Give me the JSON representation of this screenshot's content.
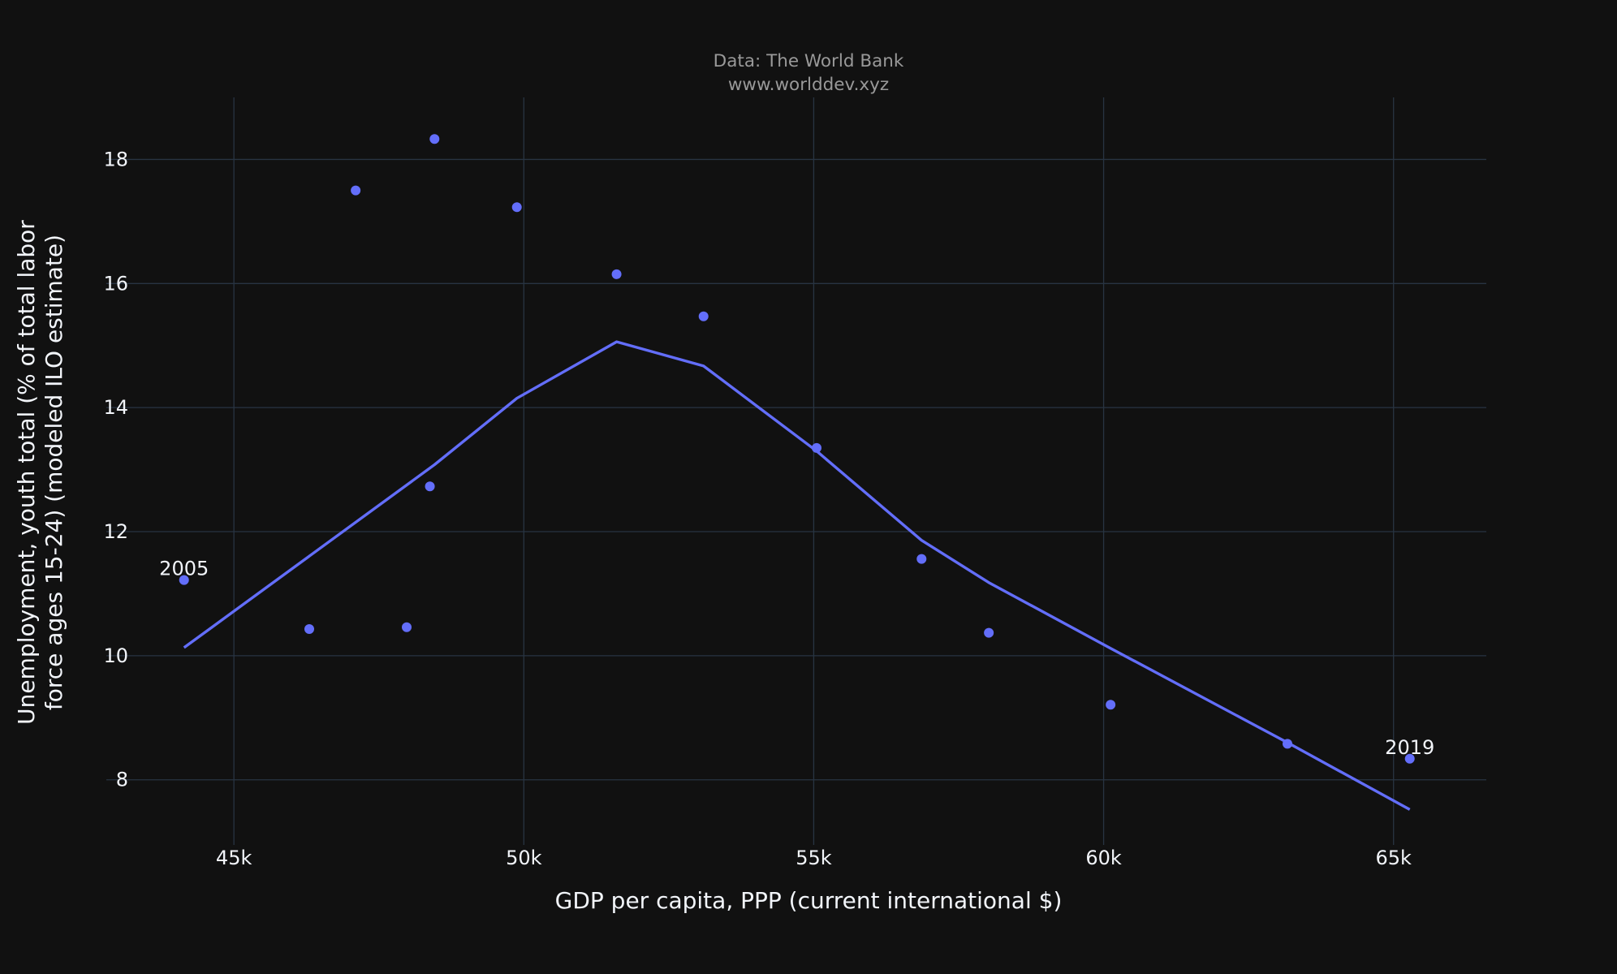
{
  "caption": {
    "line1": "Data: The World Bank",
    "line2": "www.worlddev.xyz"
  },
  "colors": {
    "background": "#111111",
    "grid": "#283442",
    "series": "#636efa",
    "text": "#f2f5fa",
    "caption": "#999999"
  },
  "chart_data": {
    "type": "scatter",
    "title": "",
    "xlabel": "GDP per capita, PPP (current international $)",
    "ylabel_lines": [
      "Unemployment, youth total (% of total labor",
      "force ages 15-24) (modeled ILO estimate)"
    ],
    "xlim": [
      42800,
      66600
    ],
    "ylim": [
      6.95,
      19.0
    ],
    "x_ticks": [
      45000,
      50000,
      55000,
      60000,
      65000
    ],
    "x_tick_labels": [
      "45k",
      "50k",
      "55k",
      "60k",
      "65k"
    ],
    "y_ticks": [
      8,
      10,
      12,
      14,
      16,
      18
    ],
    "y_tick_labels": [
      "8",
      "10",
      "12",
      "14",
      "16",
      "18"
    ],
    "grid": true,
    "legend": "none",
    "series": [
      {
        "mode": "markers",
        "points": [
          {
            "x": 44140,
            "y": 11.22,
            "label": "2005"
          },
          {
            "x": 46300,
            "y": 10.43,
            "label": ""
          },
          {
            "x": 47100,
            "y": 17.5,
            "label": ""
          },
          {
            "x": 47980,
            "y": 10.46,
            "label": ""
          },
          {
            "x": 48380,
            "y": 12.73,
            "label": ""
          },
          {
            "x": 48460,
            "y": 18.33,
            "label": ""
          },
          {
            "x": 49880,
            "y": 17.23,
            "label": ""
          },
          {
            "x": 51600,
            "y": 16.15,
            "label": ""
          },
          {
            "x": 53100,
            "y": 15.47,
            "label": ""
          },
          {
            "x": 55050,
            "y": 13.35,
            "label": ""
          },
          {
            "x": 56860,
            "y": 11.56,
            "label": ""
          },
          {
            "x": 58020,
            "y": 10.37,
            "label": ""
          },
          {
            "x": 60120,
            "y": 9.21,
            "label": ""
          },
          {
            "x": 63170,
            "y": 8.58,
            "label": ""
          },
          {
            "x": 65280,
            "y": 8.34,
            "label": "2019"
          }
        ]
      },
      {
        "mode": "lines",
        "points": [
          {
            "x": 44140,
            "y": 10.13
          },
          {
            "x": 48460,
            "y": 13.08
          },
          {
            "x": 49880,
            "y": 14.15
          },
          {
            "x": 51600,
            "y": 15.06
          },
          {
            "x": 53100,
            "y": 14.67
          },
          {
            "x": 55050,
            "y": 13.3
          },
          {
            "x": 56860,
            "y": 11.86
          },
          {
            "x": 58020,
            "y": 11.18
          },
          {
            "x": 60120,
            "y": 10.12
          },
          {
            "x": 63170,
            "y": 8.6
          },
          {
            "x": 65280,
            "y": 7.52
          }
        ]
      }
    ]
  }
}
